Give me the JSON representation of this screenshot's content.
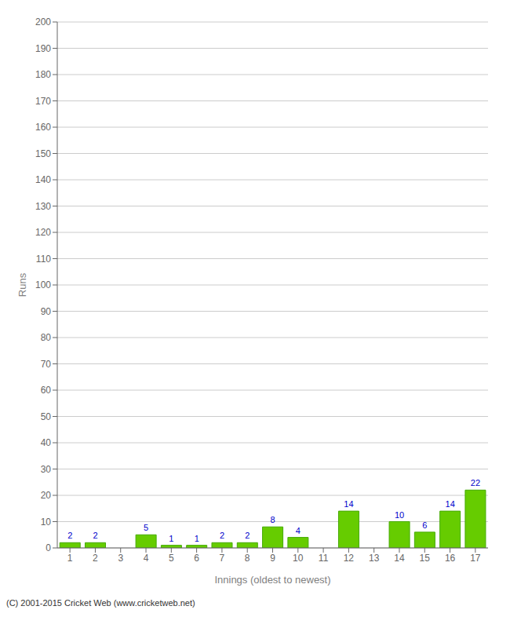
{
  "chart_data": {
    "type": "bar",
    "xlabel": "Innings (oldest to newest)",
    "ylabel": "Runs",
    "categories": [
      1,
      2,
      3,
      4,
      5,
      6,
      7,
      8,
      9,
      10,
      11,
      12,
      13,
      14,
      15,
      16,
      17
    ],
    "values": [
      2,
      2,
      0,
      5,
      1,
      1,
      2,
      2,
      8,
      4,
      0,
      14,
      0,
      10,
      6,
      14,
      22
    ],
    "color": "#66cc00",
    "ylim": [
      0,
      200
    ],
    "yticks": [
      0,
      10,
      20,
      30,
      40,
      50,
      60,
      70,
      80,
      90,
      100,
      110,
      120,
      130,
      140,
      150,
      160,
      170,
      180,
      190,
      200
    ],
    "grid": true,
    "data_labels": true,
    "annotations": [
      "(C) 2001-2015 Cricket Web (www.cricketweb.net)"
    ]
  }
}
